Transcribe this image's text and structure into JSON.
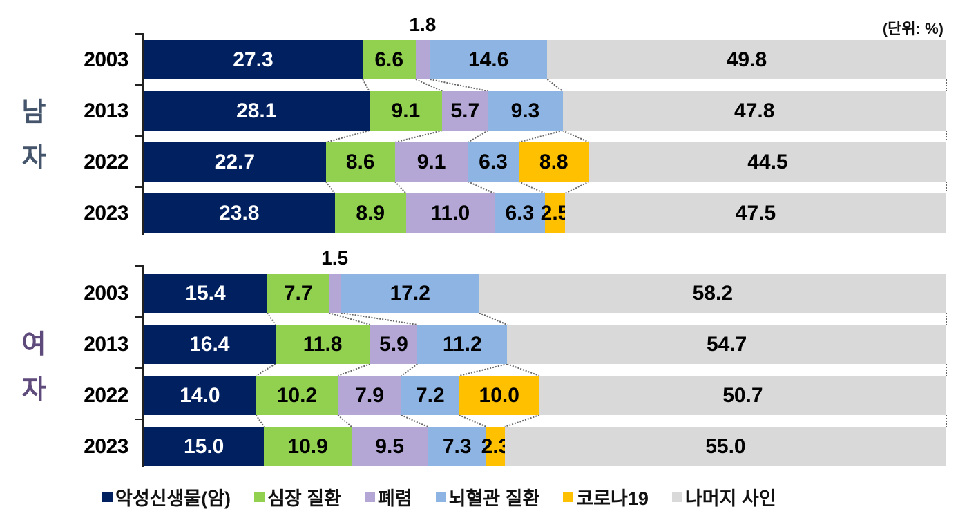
{
  "unit_label": "(단위: %)",
  "groups": [
    {
      "label_line1": "남",
      "label_line2": "자",
      "color": "#44546A"
    },
    {
      "label_line1": "여",
      "label_line2": "자",
      "color": "#5F4B7B"
    }
  ],
  "legend": [
    {
      "label": "악성신생물(암)",
      "color": "#002060"
    },
    {
      "label": "심장 질환",
      "color": "#92D050"
    },
    {
      "label": "폐렴",
      "color": "#B4A7D6"
    },
    {
      "label": "뇌혈관 질환",
      "color": "#8DB4E2"
    },
    {
      "label": "코로나19",
      "color": "#FFC000"
    },
    {
      "label": "나머지 사인",
      "color": "#D9D9D9"
    }
  ],
  "chart_data": {
    "type": "bar",
    "orientation": "horizontal",
    "stacked": true,
    "title": "",
    "unit": "%",
    "xlabel": "",
    "ylabel": "",
    "xlim": [
      0,
      100
    ],
    "grid": false,
    "legend_position": "bottom",
    "series_names": [
      "악성신생물(암)",
      "심장 질환",
      "폐렴",
      "뇌혈관 질환",
      "코로나19",
      "나머지 사인"
    ],
    "series_colors": [
      "#002060",
      "#92D050",
      "#B4A7D6",
      "#8DB4E2",
      "#FFC000",
      "#D9D9D9"
    ],
    "panels": [
      {
        "name": "남자",
        "categories": [
          "2003",
          "2013",
          "2022",
          "2023"
        ],
        "series": [
          {
            "name": "악성신생물(암)",
            "values": [
              27.3,
              28.1,
              22.7,
              23.8
            ]
          },
          {
            "name": "심장 질환",
            "values": [
              6.6,
              9.1,
              8.6,
              8.9
            ]
          },
          {
            "name": "폐렴",
            "values": [
              1.8,
              5.7,
              9.1,
              11.0
            ]
          },
          {
            "name": "뇌혈관 질환",
            "values": [
              14.6,
              9.3,
              6.3,
              6.3
            ]
          },
          {
            "name": "코로나19",
            "values": [
              0,
              0,
              8.8,
              2.5
            ]
          },
          {
            "name": "나머지 사인",
            "values": [
              49.8,
              47.8,
              44.5,
              47.5
            ]
          }
        ]
      },
      {
        "name": "여자",
        "categories": [
          "2003",
          "2013",
          "2022",
          "2023"
        ],
        "series": [
          {
            "name": "악성신생물(암)",
            "values": [
              15.4,
              16.4,
              14.0,
              15.0
            ]
          },
          {
            "name": "심장 질환",
            "values": [
              7.7,
              11.8,
              10.2,
              10.9
            ]
          },
          {
            "name": "폐렴",
            "values": [
              1.5,
              5.9,
              7.9,
              9.5
            ]
          },
          {
            "name": "뇌혈관 질환",
            "values": [
              17.2,
              11.2,
              7.2,
              7.3
            ]
          },
          {
            "name": "코로나19",
            "values": [
              0,
              0,
              10.0,
              2.3
            ]
          },
          {
            "name": "나머지 사인",
            "values": [
              58.2,
              54.7,
              50.7,
              55.0
            ]
          }
        ]
      }
    ],
    "annotations": [
      {
        "panel": "남자",
        "year": "2003",
        "text": "1.8",
        "position": "above pneumonia segment"
      },
      {
        "panel": "여자",
        "year": "2003",
        "text": "1.5",
        "position": "above pneumonia segment"
      }
    ]
  },
  "rows": [
    {
      "year": "2003",
      "labels": [
        "27.3",
        "6.6",
        "",
        "14.6",
        "",
        "49.8"
      ]
    },
    {
      "year": "2013",
      "labels": [
        "28.1",
        "9.1",
        "5.7",
        "9.3",
        "",
        "47.8"
      ]
    },
    {
      "year": "2022",
      "labels": [
        "22.7",
        "8.6",
        "9.1",
        "6.3",
        "8.8",
        "44.5"
      ]
    },
    {
      "year": "2023",
      "labels": [
        "23.8",
        "8.9",
        "11.0",
        "6.3",
        "2.5",
        "47.5"
      ]
    },
    {
      "year": "2003",
      "labels": [
        "15.4",
        "7.7",
        "",
        "17.2",
        "",
        "58.2"
      ]
    },
    {
      "year": "2013",
      "labels": [
        "16.4",
        "11.8",
        "5.9",
        "11.2",
        "",
        "54.7"
      ]
    },
    {
      "year": "2022",
      "labels": [
        "14.0",
        "10.2",
        "7.9",
        "7.2",
        "10.0",
        "50.7"
      ]
    },
    {
      "year": "2023",
      "labels": [
        "15.0",
        "10.9",
        "9.5",
        "7.3",
        "2.3",
        "55.0"
      ]
    }
  ],
  "above_labels": [
    "1.8",
    "1.5"
  ]
}
